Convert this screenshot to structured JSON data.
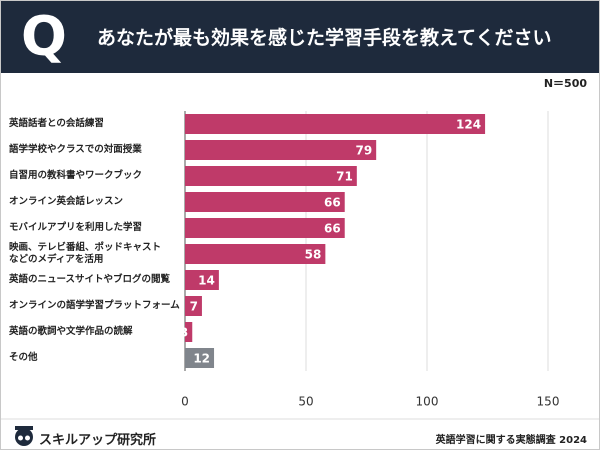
{
  "header": {
    "mark": "Q",
    "title": "あなたが最も効果を感じた学習手段を教えてください"
  },
  "note": "N＝500",
  "chart_data": {
    "type": "barh",
    "categories": [
      "英語話者との会話練習",
      "語学学校やクラスでの対面授業",
      "自習用の教科書やワークブック",
      "オンライン英会話レッスン",
      "モバイルアプリを利用した学習",
      "映画、テレビ番組、ポッドキャスト\nなどのメディアを活用",
      "英語のニュースサイトやブログの閲覧",
      "オンラインの語学学習プラットフォーム",
      "英語の歌詞や文学作品の読解",
      "その他"
    ],
    "values": [
      124,
      79,
      71,
      66,
      66,
      58,
      14,
      7,
      3,
      12
    ],
    "colors": [
      "#bf3a69",
      "#bf3a69",
      "#bf3a69",
      "#bf3a69",
      "#bf3a69",
      "#bf3a69",
      "#bf3a69",
      "#bf3a69",
      "#bf3a69",
      "#80858c"
    ],
    "xlim": [
      0,
      150
    ],
    "xticks": [
      0,
      50,
      100,
      150
    ],
    "grid": true
  },
  "footer": {
    "brand": "スキルアップ研究所",
    "source": "英語学習に関する実態調査 2024"
  }
}
